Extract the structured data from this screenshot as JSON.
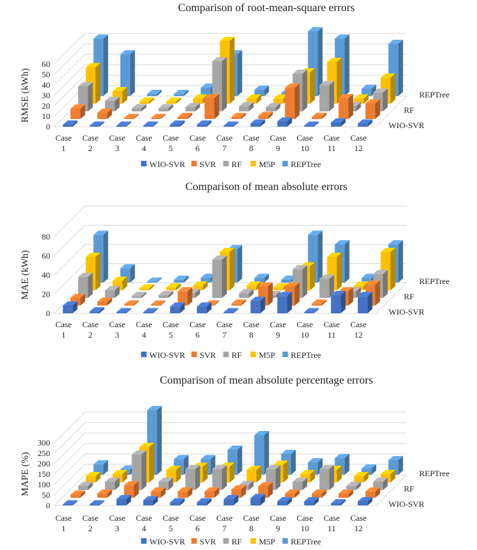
{
  "chart_data": [
    {
      "type": "bar",
      "title": "Comparison of root-mean-square errors",
      "ylabel": "RMSE (kWh)",
      "xlabel": "",
      "ylim": [
        0,
        60
      ],
      "yticks": [
        0,
        10,
        20,
        30,
        40,
        50,
        60
      ],
      "categories": [
        "Case\n1",
        "Case\n2",
        "Case\n3",
        "Case\n4",
        "Case\n5",
        "Case\n6",
        "Case\n7",
        "Case\n8",
        "Case\n9",
        "Case\n10",
        "Case\n11",
        "Case\n12"
      ],
      "depth_labels": [
        "REPTree",
        "RF",
        "WIO-SVR"
      ],
      "series": [
        {
          "name": "WIO-SVR",
          "color": "#4472C4",
          "values": [
            2,
            1,
            0.3,
            1,
            2,
            2,
            0.5,
            3,
            5,
            0.5,
            4,
            3
          ]
        },
        {
          "name": "SVR",
          "color": "#ED7D31",
          "values": [
            10,
            6,
            1,
            1,
            2,
            20,
            2,
            3,
            30,
            2,
            20,
            15
          ]
        },
        {
          "name": "RF",
          "color": "#A5A5A5",
          "values": [
            24,
            10,
            3,
            3,
            4,
            48,
            5,
            4,
            36,
            25,
            5,
            18
          ]
        },
        {
          "name": "M5P",
          "color": "#FFC000",
          "values": [
            35,
            12,
            2,
            2,
            5,
            60,
            5,
            5,
            30,
            40,
            5,
            25
          ]
        },
        {
          "name": "REPTree",
          "color": "#5B9BD5",
          "values": [
            55,
            40,
            2,
            2,
            8,
            40,
            6,
            3,
            62,
            55,
            7,
            50
          ]
        }
      ]
    },
    {
      "type": "bar",
      "title": "Comparison of mean absolute errors",
      "ylabel": "MAE (kWh)",
      "xlabel": "",
      "ylim": [
        0,
        80
      ],
      "yticks": [
        0,
        20,
        40,
        60,
        80
      ],
      "categories": [
        "Case\n1",
        "Case\n2",
        "Case\n3",
        "Case\n4",
        "Case\n5",
        "Case\n6",
        "Case\n7",
        "Case\n8",
        "Case\n9",
        "Case\n10",
        "Case\n11",
        "Case\n12"
      ],
      "depth_labels": [
        "REPTree",
        "RF",
        "WIO-SVR"
      ],
      "series": [
        {
          "name": "WIO-SVR",
          "color": "#4472C4",
          "values": [
            8,
            2,
            0.5,
            0.5,
            7,
            7,
            1,
            13,
            18,
            1,
            19,
            18
          ]
        },
        {
          "name": "SVR",
          "color": "#ED7D31",
          "values": [
            8,
            4,
            1,
            1,
            15,
            1,
            2,
            20,
            20,
            2,
            15,
            22
          ]
        },
        {
          "name": "RF",
          "color": "#A5A5A5",
          "values": [
            22,
            8,
            2,
            3,
            5,
            40,
            5,
            3,
            30,
            20,
            7,
            25
          ]
        },
        {
          "name": "M5P",
          "color": "#FFC000",
          "values": [
            35,
            10,
            2,
            3,
            5,
            40,
            5,
            3,
            25,
            35,
            5,
            40
          ]
        },
        {
          "name": "REPTree",
          "color": "#5B9BD5",
          "values": [
            50,
            15,
            1,
            3,
            5,
            35,
            5,
            3,
            50,
            40,
            5,
            40
          ]
        }
      ]
    },
    {
      "type": "bar",
      "title": "Comparison of mean absolute percentage errors",
      "ylabel": "MAPE (%)",
      "xlabel": "",
      "ylim": [
        0,
        300
      ],
      "yticks": [
        0,
        50,
        100,
        150,
        200,
        250,
        300
      ],
      "categories": [
        "Case\n1",
        "Case\n2",
        "Case\n3",
        "Case\n4",
        "Case\n5",
        "Case\n6",
        "Case\n7",
        "Case\n8",
        "Case\n9",
        "Case\n10",
        "Case\n11",
        "Case\n12"
      ],
      "depth_labels": [
        "REPTree",
        "RF",
        "WIO-SVR"
      ],
      "series": [
        {
          "name": "WIO-SVR",
          "color": "#4472C4",
          "values": [
            5,
            5,
            30,
            25,
            15,
            15,
            30,
            35,
            20,
            20,
            10,
            20
          ]
        },
        {
          "name": "SVR",
          "color": "#ED7D31",
          "values": [
            15,
            20,
            60,
            30,
            30,
            30,
            40,
            55,
            20,
            20,
            20,
            30
          ]
        },
        {
          "name": "RF",
          "color": "#A5A5A5",
          "values": [
            20,
            40,
            170,
            40,
            100,
            100,
            25,
            100,
            40,
            100,
            20,
            40
          ]
        },
        {
          "name": "M5P",
          "color": "#FFC000",
          "values": [
            30,
            40,
            170,
            60,
            75,
            75,
            60,
            85,
            40,
            60,
            30,
            40
          ]
        },
        {
          "name": "REPTree",
          "color": "#5B9BD5",
          "values": [
            50,
            25,
            310,
            75,
            75,
            120,
            190,
            100,
            60,
            80,
            30,
            70
          ]
        }
      ]
    }
  ]
}
